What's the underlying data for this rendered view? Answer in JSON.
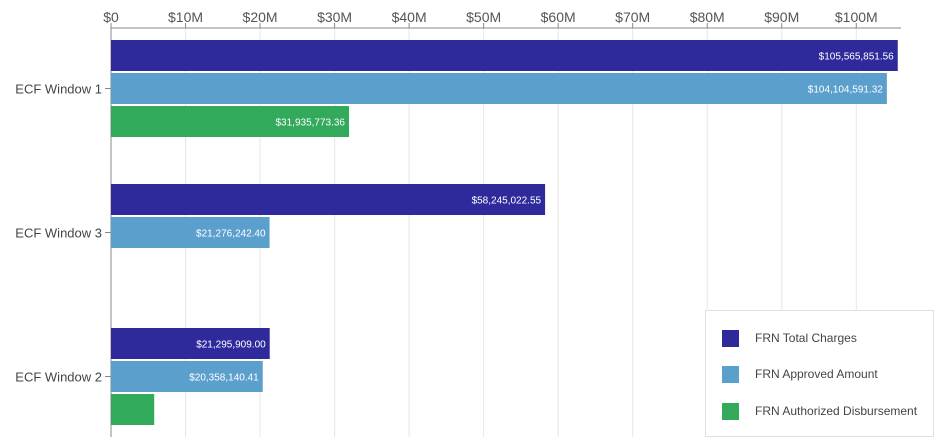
{
  "chart_data": {
    "type": "bar",
    "orientation": "horizontal",
    "categories": [
      "ECF Window 1",
      "ECF Window 3",
      "ECF Window 2"
    ],
    "series": [
      {
        "name": "FRN Total Charges",
        "color": "#2e2a9c",
        "values": [
          105565851.56,
          58245022.55,
          21295909.0
        ],
        "labels": [
          "$105,565,851.56",
          "$58,245,022.55",
          "$21,295,909.00"
        ]
      },
      {
        "name": "FRN Approved Amount",
        "color": "#5b9fcd",
        "values": [
          104104591.32,
          21276242.4,
          20358140.41
        ],
        "labels": [
          "$104,104,591.32",
          "$21,276,242.40",
          "$20,358,140.41"
        ]
      },
      {
        "name": "FRN Authorized Disbursement",
        "color": "#33a95b",
        "values": [
          31935773.36,
          null,
          5800000
        ],
        "labels": [
          "$31,935,773.36",
          "",
          ""
        ]
      }
    ],
    "xlim": [
      0,
      106000000
    ],
    "x_ticks": [
      0,
      10000000,
      20000000,
      30000000,
      40000000,
      50000000,
      60000000,
      70000000,
      80000000,
      90000000,
      100000000
    ],
    "x_tick_labels": [
      "$0",
      "$10M",
      "$20M",
      "$30M",
      "$40M",
      "$50M",
      "$60M",
      "$70M",
      "$80M",
      "$90M",
      "$100M"
    ],
    "x_axis_position": "top",
    "grid": true,
    "legend_position": "bottom-right"
  }
}
